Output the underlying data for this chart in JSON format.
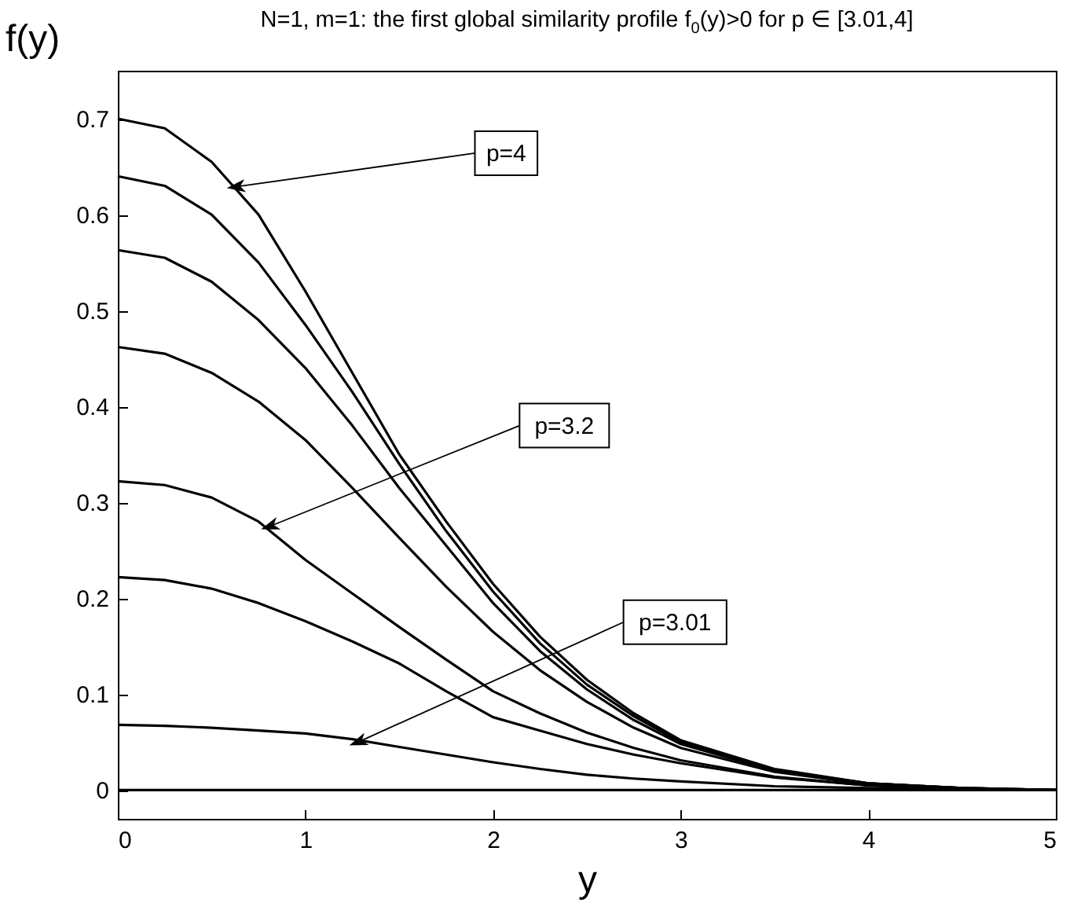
{
  "chart_data": {
    "type": "line",
    "title": "N=1, m=1: the first  global similarity profile f$_{0}$(y)>0 for p ∈ [3.01,4]",
    "xlabel": "y",
    "ylabel": "f(y)",
    "x": [
      0,
      0.25,
      0.5,
      0.75,
      1,
      1.25,
      1.5,
      1.75,
      2,
      2.25,
      2.5,
      2.75,
      3,
      3.5,
      4,
      4.5,
      5
    ],
    "series": [
      {
        "color": "#000000",
        "values": [
          0.7,
          0.69,
          0.655,
          0.6,
          0.52,
          0.435,
          0.35,
          0.28,
          0.215,
          0.16,
          0.115,
          0.08,
          0.052,
          0.022,
          0.007,
          0.002,
          0
        ]
      },
      {
        "color": "#000000",
        "values": [
          0.64,
          0.63,
          0.6,
          0.55,
          0.485,
          0.415,
          0.34,
          0.27,
          0.207,
          0.153,
          0.11,
          0.077,
          0.05,
          0.021,
          0.007,
          0.002,
          0
        ]
      },
      {
        "color": "#000000",
        "values": [
          0.563,
          0.555,
          0.53,
          0.49,
          0.44,
          0.38,
          0.315,
          0.255,
          0.195,
          0.145,
          0.105,
          0.073,
          0.048,
          0.02,
          0.007,
          0.002,
          0
        ]
      },
      {
        "color": "#000000",
        "values": [
          0.462,
          0.455,
          0.435,
          0.405,
          0.365,
          0.315,
          0.263,
          0.212,
          0.165,
          0.125,
          0.092,
          0.065,
          0.044,
          0.019,
          0.006,
          0.002,
          0
        ]
      },
      {
        "color": "#000000",
        "values": [
          0.322,
          0.318,
          0.305,
          0.28,
          0.24,
          0.205,
          0.17,
          0.136,
          0.103,
          0.08,
          0.06,
          0.044,
          0.031,
          0.014,
          0.005,
          0.001,
          0
        ]
      },
      {
        "color": "#000000",
        "values": [
          0.222,
          0.219,
          0.21,
          0.195,
          0.176,
          0.155,
          0.132,
          0.103,
          0.076,
          0.062,
          0.048,
          0.037,
          0.028,
          0.013,
          0.005,
          0.001,
          0
        ]
      },
      {
        "color": "#000000",
        "values": [
          0.068,
          0.067,
          0.065,
          0.062,
          0.059,
          0.053,
          0.045,
          0.037,
          0.029,
          0.022,
          0.016,
          0.012,
          0.009,
          0.004,
          0.002,
          0,
          0
        ]
      },
      {
        "color": "#000000",
        "values": [
          0,
          0,
          0,
          0,
          0,
          0,
          0,
          0,
          0,
          0,
          0,
          0,
          0,
          0,
          0,
          0,
          0
        ]
      }
    ],
    "annotations": [
      {
        "text": "p=4",
        "x": 0.63,
        "y": 0.629
      },
      {
        "text": "p=3.2",
        "x": 0.81,
        "y": 0.275
      },
      {
        "text": "p=3.01",
        "x": 1.28,
        "y": 0.05
      }
    ],
    "xlim": [
      0,
      5
    ],
    "ylim": [
      -0.03,
      0.75
    ],
    "xticks": [
      0,
      1,
      2,
      3,
      4,
      5
    ],
    "yticks": [
      0,
      0.1,
      0.2,
      0.3,
      0.4,
      0.5,
      0.6,
      0.7
    ],
    "grid": false,
    "legend": false,
    "marker": "none",
    "line_style": "solid"
  }
}
